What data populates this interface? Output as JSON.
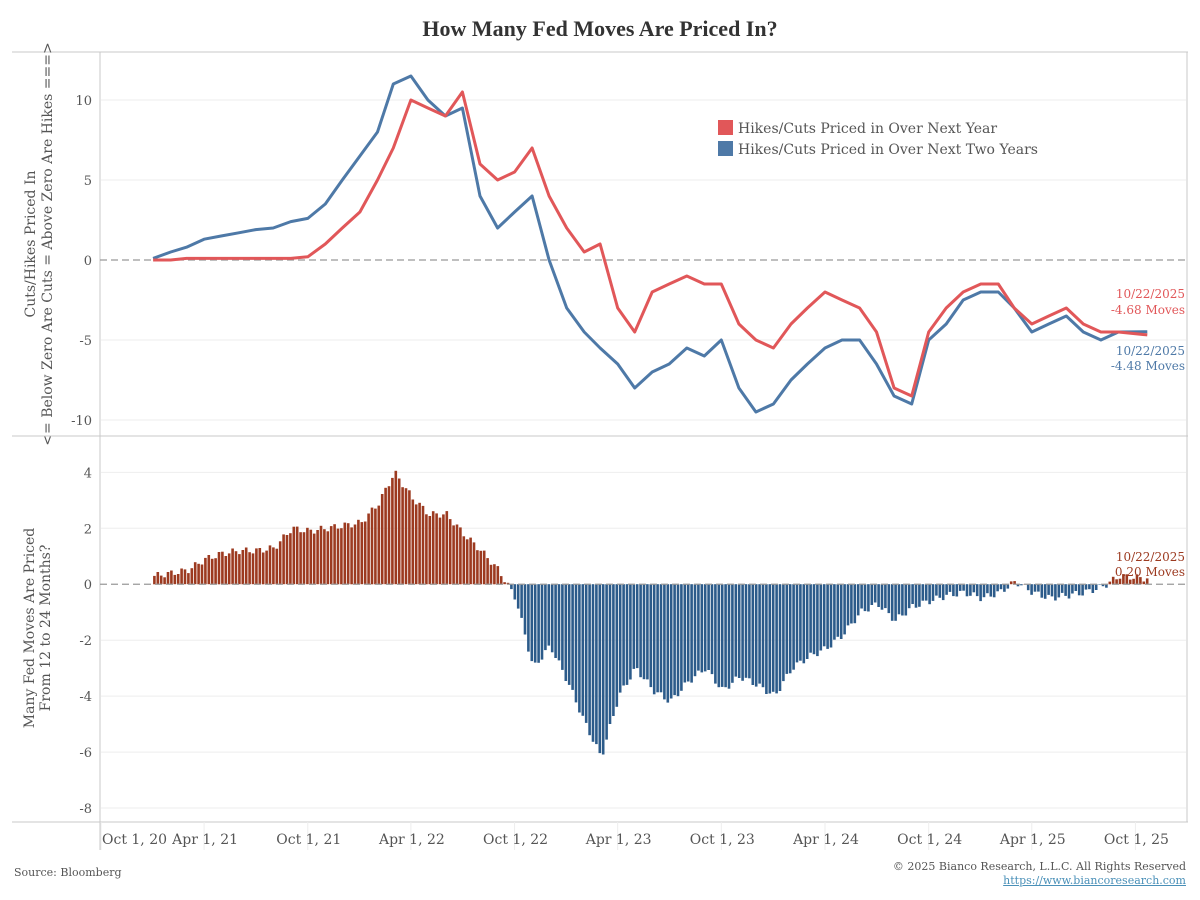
{
  "title": "How Many Fed Moves Are Priced In?",
  "footer": {
    "source": "Source: Bloomberg",
    "copyright": "© 2025 Bianco Research, L.L.C. All Rights Reserved",
    "url": "https://www.biancoresearch.com"
  },
  "colors": {
    "next_year": "#e15759",
    "next_two_years": "#4e79a7",
    "bar_positive": "#9c3a20",
    "bar_negative": "#2c5b8a",
    "zero_line": "#999999",
    "grid": "#eeeeee",
    "axis": "#c8c8c8"
  },
  "chart_data": [
    {
      "type": "line",
      "panel": "top",
      "ylabel": [
        "<= Below Zero Are Cuts = Above Zero Are Hikes ===>",
        "Cuts/Hikes Priced In"
      ],
      "ylim": [
        -11,
        13
      ],
      "yticks": [
        10,
        5,
        0,
        -5,
        -10
      ],
      "xlim": [
        "2020-10-01",
        "2025-12-01"
      ],
      "xticks": [
        "Oct 1, 20",
        "Apr 1, 21",
        "Oct 1, 21",
        "Apr 1, 22",
        "Oct 1, 22",
        "Apr 1, 23",
        "Oct 1, 23",
        "Apr 1, 24",
        "Oct 1, 24",
        "Apr 1, 25",
        "Oct 1, 25"
      ],
      "xtick_dates": [
        "2020-10-01",
        "2021-04-01",
        "2021-10-01",
        "2022-04-01",
        "2022-10-01",
        "2023-04-01",
        "2023-10-01",
        "2024-04-01",
        "2024-10-01",
        "2025-04-01",
        "2025-10-01"
      ],
      "legend": {
        "position": "top-right",
        "entries": [
          "Hikes/Cuts Priced in Over Next Year",
          "Hikes/Cuts Priced in Over Next Two Years"
        ]
      },
      "x": [
        "2021-01-01",
        "2021-02-01",
        "2021-03-01",
        "2021-04-01",
        "2021-05-01",
        "2021-06-01",
        "2021-07-01",
        "2021-08-01",
        "2021-09-01",
        "2021-10-01",
        "2021-11-01",
        "2021-12-01",
        "2022-01-01",
        "2022-02-01",
        "2022-03-01",
        "2022-04-01",
        "2022-05-01",
        "2022-06-01",
        "2022-07-01",
        "2022-08-01",
        "2022-09-01",
        "2022-10-01",
        "2022-11-01",
        "2022-12-01",
        "2023-01-01",
        "2023-02-01",
        "2023-03-01",
        "2023-04-01",
        "2023-05-01",
        "2023-06-01",
        "2023-07-01",
        "2023-08-01",
        "2023-09-01",
        "2023-10-01",
        "2023-11-01",
        "2023-12-01",
        "2024-01-01",
        "2024-02-01",
        "2024-03-01",
        "2024-04-01",
        "2024-05-01",
        "2024-06-01",
        "2024-07-01",
        "2024-08-01",
        "2024-09-01",
        "2024-10-01",
        "2024-11-01",
        "2024-12-01",
        "2025-01-01",
        "2025-02-01",
        "2025-03-01",
        "2025-04-01",
        "2025-05-01",
        "2025-06-01",
        "2025-07-01",
        "2025-08-01",
        "2025-09-01",
        "2025-10-22"
      ],
      "series": [
        {
          "name": "Hikes/Cuts Priced in Over Next Year",
          "values": [
            0.0,
            0.0,
            0.1,
            0.1,
            0.1,
            0.1,
            0.1,
            0.1,
            0.1,
            0.2,
            1.0,
            2.0,
            3.0,
            5.0,
            7.0,
            10.0,
            9.5,
            9.0,
            10.5,
            6.0,
            5.0,
            5.5,
            7.0,
            4.0,
            2.0,
            0.5,
            1.0,
            -3.0,
            -4.5,
            -2.0,
            -1.5,
            -1.0,
            -1.5,
            -1.5,
            -4.0,
            -5.0,
            -5.5,
            -4.0,
            -3.0,
            -2.0,
            -2.5,
            -3.0,
            -4.5,
            -8.0,
            -8.5,
            -4.5,
            -3.0,
            -2.0,
            -1.5,
            -1.5,
            -3.0,
            -4.0,
            -3.5,
            -3.0,
            -4.0,
            -4.5,
            -4.5,
            -4.68
          ]
        },
        {
          "name": "Hikes/Cuts Priced in Over Next Two Years",
          "values": [
            0.1,
            0.5,
            0.8,
            1.3,
            1.5,
            1.7,
            1.9,
            2.0,
            2.4,
            2.6,
            3.5,
            5.0,
            6.5,
            8.0,
            11.0,
            11.5,
            10.0,
            9.0,
            9.5,
            4.0,
            2.0,
            3.0,
            4.0,
            0.0,
            -3.0,
            -4.5,
            -5.5,
            -6.5,
            -8.0,
            -7.0,
            -6.5,
            -5.5,
            -6.0,
            -5.0,
            -8.0,
            -9.5,
            -9.0,
            -7.5,
            -6.5,
            -5.5,
            -5.0,
            -5.0,
            -6.5,
            -8.5,
            -9.0,
            -5.0,
            -4.0,
            -2.5,
            -2.0,
            -2.0,
            -3.0,
            -4.5,
            -4.0,
            -3.5,
            -4.5,
            -5.0,
            -4.5,
            -4.48
          ]
        }
      ],
      "annotations": [
        {
          "series": "Hikes/Cuts Priced in Over Next Year",
          "date": "10/22/2025",
          "label": "-4.68 Moves"
        },
        {
          "series": "Hikes/Cuts Priced in Over Next Two Years",
          "date": "10/22/2025",
          "label": "-4.48 Moves"
        }
      ]
    },
    {
      "type": "bar",
      "panel": "bottom",
      "ylabel": [
        "Many Fed Moves Are Priced",
        "From 12 to 24 Months?"
      ],
      "ylim": [
        -8.5,
        5.3
      ],
      "yticks": [
        4,
        2,
        0,
        -2,
        -4,
        -6,
        -8
      ],
      "x": [
        "2021-01-01",
        "2021-02-01",
        "2021-03-01",
        "2021-04-01",
        "2021-05-01",
        "2021-06-01",
        "2021-07-01",
        "2021-08-01",
        "2021-09-01",
        "2021-10-01",
        "2021-11-01",
        "2021-12-01",
        "2022-01-01",
        "2022-02-01",
        "2022-03-01",
        "2022-04-01",
        "2022-05-01",
        "2022-06-01",
        "2022-07-01",
        "2022-08-01",
        "2022-09-01",
        "2022-10-01",
        "2022-11-01",
        "2022-12-01",
        "2023-01-01",
        "2023-02-01",
        "2023-03-01",
        "2023-04-01",
        "2023-05-01",
        "2023-06-01",
        "2023-07-01",
        "2023-08-01",
        "2023-09-01",
        "2023-10-01",
        "2023-11-01",
        "2023-12-01",
        "2024-01-01",
        "2024-02-01",
        "2024-03-01",
        "2024-04-01",
        "2024-05-01",
        "2024-06-01",
        "2024-07-01",
        "2024-08-01",
        "2024-09-01",
        "2024-10-01",
        "2024-11-01",
        "2024-12-01",
        "2025-01-01",
        "2025-02-01",
        "2025-03-01",
        "2025-04-01",
        "2025-05-01",
        "2025-06-01",
        "2025-07-01",
        "2025-08-01",
        "2025-09-01",
        "2025-10-22"
      ],
      "values": [
        0.3,
        0.4,
        0.5,
        0.9,
        1.1,
        1.2,
        1.2,
        1.3,
        2.0,
        1.9,
        2.0,
        2.1,
        2.2,
        2.9,
        4.0,
        3.1,
        2.5,
        2.5,
        1.8,
        1.2,
        0.5,
        -0.5,
        -3.0,
        -2.2,
        -3.5,
        -5.0,
        -6.2,
        -4.0,
        -3.0,
        -3.8,
        -4.2,
        -3.5,
        -3.0,
        -3.8,
        -3.3,
        -3.6,
        -4.0,
        -3.0,
        -2.6,
        -2.3,
        -1.8,
        -1.0,
        -0.7,
        -1.3,
        -0.8,
        -0.6,
        -0.4,
        -0.3,
        -0.5,
        -0.3,
        0.1,
        -0.3,
        -0.5,
        -0.4,
        -0.3,
        -0.1,
        0.3,
        0.2
      ],
      "annotations": [
        {
          "date": "10/22/2025",
          "label": "0.20 Moves"
        }
      ]
    }
  ]
}
